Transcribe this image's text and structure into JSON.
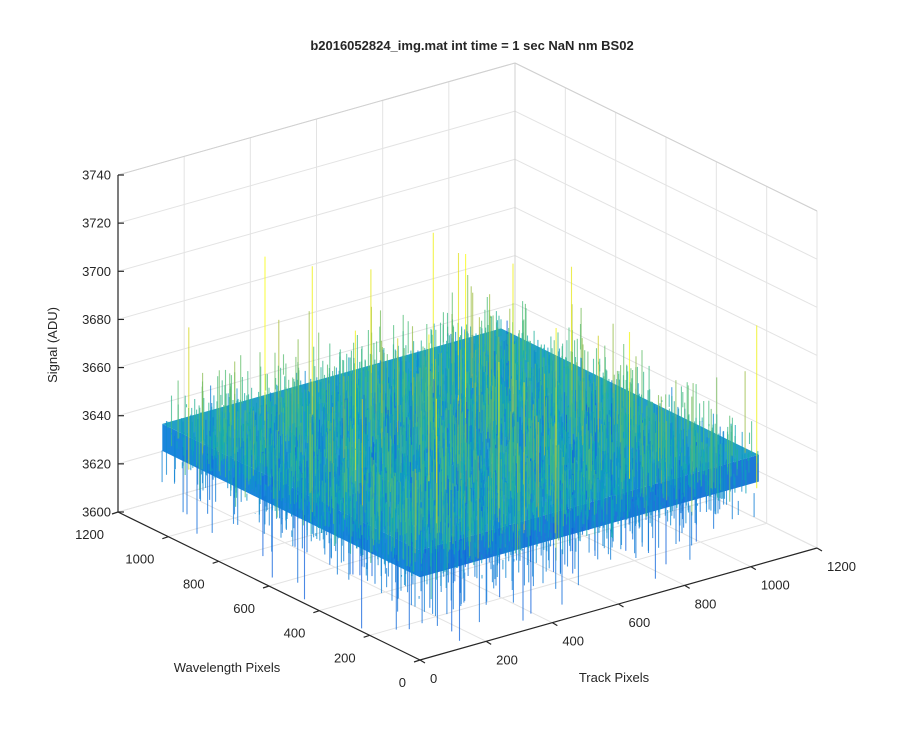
{
  "chart_data": {
    "type": "surface",
    "title": "b2016052824_img.mat int time = 1 sec  NaN nm BS02",
    "xlabel": "Track Pixels",
    "ylabel": "Wavelength Pixels",
    "zlabel": "Signal (ADU)",
    "xlim": [
      0,
      1200
    ],
    "ylim": [
      0,
      1200
    ],
    "zlim": [
      3600,
      3740
    ],
    "x_ticks": [
      "0",
      "200",
      "400",
      "600",
      "800",
      "1000",
      "1200"
    ],
    "y_ticks": [
      "0",
      "200",
      "400",
      "600",
      "800",
      "1000",
      "1200"
    ],
    "z_ticks": [
      "3600",
      "3620",
      "3640",
      "3660",
      "3680",
      "3700",
      "3720",
      "3740"
    ],
    "surface": {
      "x_extent": [
        0,
        1024
      ],
      "y_extent": [
        0,
        1024
      ],
      "mean_signal": 3640,
      "typical_range": [
        3612,
        3668
      ],
      "max_spike": 3730,
      "min_dip": 3600,
      "description_colormap": "parula"
    },
    "grid": true,
    "box": "partial"
  }
}
